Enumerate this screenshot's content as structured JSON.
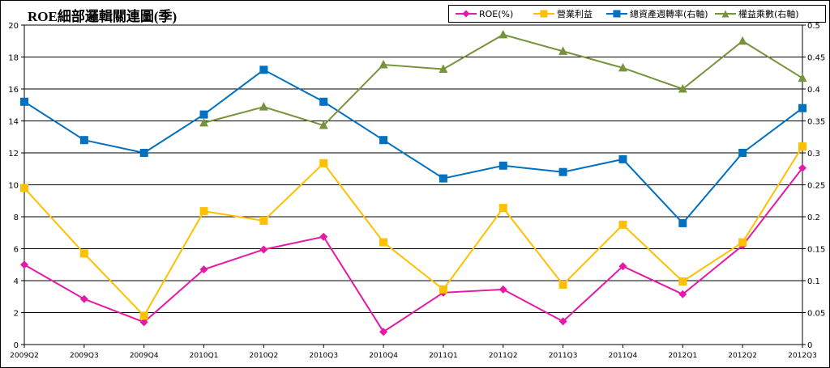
{
  "chart_data": {
    "type": "line",
    "title": "ROE細部邏輯關連圖(季)",
    "categories": [
      "2009Q2",
      "2009Q3",
      "2009Q4",
      "2010Q1",
      "2010Q2",
      "2010Q3",
      "2010Q4",
      "2011Q1",
      "2011Q2",
      "2011Q3",
      "2011Q4",
      "2012Q1",
      "2012Q2",
      "2012Q3"
    ],
    "ylim_left": [
      0,
      20
    ],
    "yticks_left": [
      "0",
      "2",
      "4",
      "6",
      "8",
      "10",
      "12",
      "14",
      "16",
      "18",
      "20"
    ],
    "ylim_right": [
      0,
      0.5
    ],
    "yticks_right": [
      "0",
      "0.05",
      "0.1",
      "0.15",
      "0.2",
      "0.25",
      "0.3",
      "0.35",
      "0.4",
      "0.45",
      "0.5"
    ],
    "grid": true,
    "legend_position": "top-right",
    "series": [
      {
        "name": "ROE(%)",
        "axis": "left",
        "color": "#e619a6",
        "marker": "diamond",
        "values": [
          5.0,
          2.85,
          1.4,
          4.7,
          5.95,
          6.75,
          0.8,
          3.25,
          3.45,
          1.45,
          4.9,
          3.15,
          6.2,
          11.05
        ]
      },
      {
        "name": "營業利益",
        "axis": "left",
        "color": "#ffc000",
        "marker": "square",
        "values": [
          9.8,
          5.7,
          1.8,
          8.35,
          7.75,
          11.35,
          6.4,
          3.45,
          8.55,
          3.75,
          7.5,
          3.95,
          6.4,
          12.4
        ]
      },
      {
        "name": "總資產週轉率(右軸)",
        "axis": "right",
        "color": "#0070c0",
        "marker": "square",
        "values": [
          0.38,
          0.32,
          0.3,
          0.36,
          0.43,
          0.38,
          0.32,
          0.26,
          0.28,
          0.27,
          0.29,
          0.19,
          0.3,
          0.37
        ]
      },
      {
        "name": "權益乘數(右軸)",
        "axis": "right",
        "color": "#77933c",
        "marker": "triangle",
        "values": [
          null,
          null,
          null,
          0.347,
          0.372,
          0.343,
          0.438,
          0.431,
          0.485,
          0.459,
          0.433,
          0.4,
          0.475,
          0.417
        ]
      }
    ]
  }
}
